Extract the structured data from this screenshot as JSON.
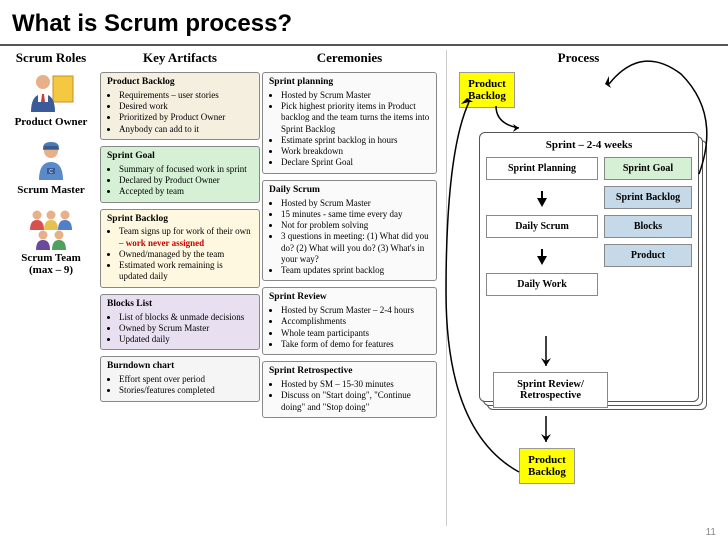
{
  "title": "What is Scrum process?",
  "pageNum": "11",
  "colHeads": {
    "roles": "Scrum Roles",
    "artifacts": "Key Artifacts",
    "ceremonies": "Ceremonies",
    "process": "Process"
  },
  "roles": [
    {
      "label": "Product Owner",
      "icon": "product-owner"
    },
    {
      "label": "Scrum Master",
      "icon": "scrum-master"
    },
    {
      "label": "Scrum Team\n(max – 9)",
      "icon": "scrum-team"
    }
  ],
  "artifacts": [
    {
      "title": "Product Backlog",
      "bg": "#f5efe0",
      "items": [
        "Requirements – user stories",
        "Desired work",
        "Prioritized by Product Owner",
        "Anybody can add to it"
      ]
    },
    {
      "title": "Sprint Goal",
      "bg": "#d5f0d5",
      "items": [
        "Summary of focused work in sprint",
        "Declared by Product Owner",
        "Accepted by team"
      ]
    },
    {
      "title": "Sprint Backlog",
      "bg": "#fff8e0",
      "items": [
        "Team signs up for work of their own – <span class='red'>work never assigned</span>",
        "Owned/managed by the team",
        "Estimated work remaining is updated daily"
      ]
    },
    {
      "title": "Blocks List",
      "bg": "#e8e0f0",
      "items": [
        "List of blocks & unmade decisions",
        "Owned by Scrum Master",
        "Updated daily"
      ]
    },
    {
      "title": "Burndown chart",
      "bg": "#f5f5f5",
      "items": [
        "Effort spent over period",
        "Stories/features completed"
      ]
    }
  ],
  "ceremonies": [
    {
      "title": "Sprint planning",
      "bg": "#fafafa",
      "items": [
        "Hosted by Scrum Master",
        "Pick highest priority items in Product backlog and the team turns the items into Sprint Backlog",
        "Estimate sprint backlog in hours",
        "Work breakdown",
        "Declare Sprint Goal"
      ]
    },
    {
      "title": "Daily Scrum",
      "bg": "#fafafa",
      "items": [
        "Hosted by Scrum Master",
        "15 minutes - same time every day",
        "Not for problem solving",
        "3 questions in meeting: (1) What did you do? (2) What will you do? (3) What's in your way?",
        "Team updates sprint backlog"
      ]
    },
    {
      "title": "Sprint Review",
      "bg": "#fafafa",
      "items": [
        "Hosted by Scrum Master – 2-4 hours",
        "Accomplishments",
        "Whole team participants",
        "Take form of demo for features"
      ]
    },
    {
      "title": "Sprint Retrospective",
      "bg": "#fafafa",
      "items": [
        "Hosted by SM – 15-30 minutes",
        "Discuss on \"Start doing\", \"Continue doing\" and \"Stop doing\""
      ]
    }
  ],
  "process": {
    "start": "Product\nBacklog",
    "end": "Product\nBacklog",
    "sprintTitle": "Sprint – 2-4 weeks",
    "leftBoxes": [
      "Sprint Planning",
      "Daily Scrum",
      "Daily Work"
    ],
    "rightBoxes": [
      {
        "label": "Sprint Goal",
        "bg": "#d5f0d5"
      },
      {
        "label": "Sprint Backlog",
        "bg": "#c5d9e8"
      },
      {
        "label": "Blocks",
        "bg": "#c5d9e8"
      },
      {
        "label": "Product",
        "bg": "#c5d9e8"
      }
    ],
    "review": "Sprint Review/\nRetrospective"
  },
  "colors": {
    "yellow": "#ffff00",
    "divider": "#cccccc"
  }
}
